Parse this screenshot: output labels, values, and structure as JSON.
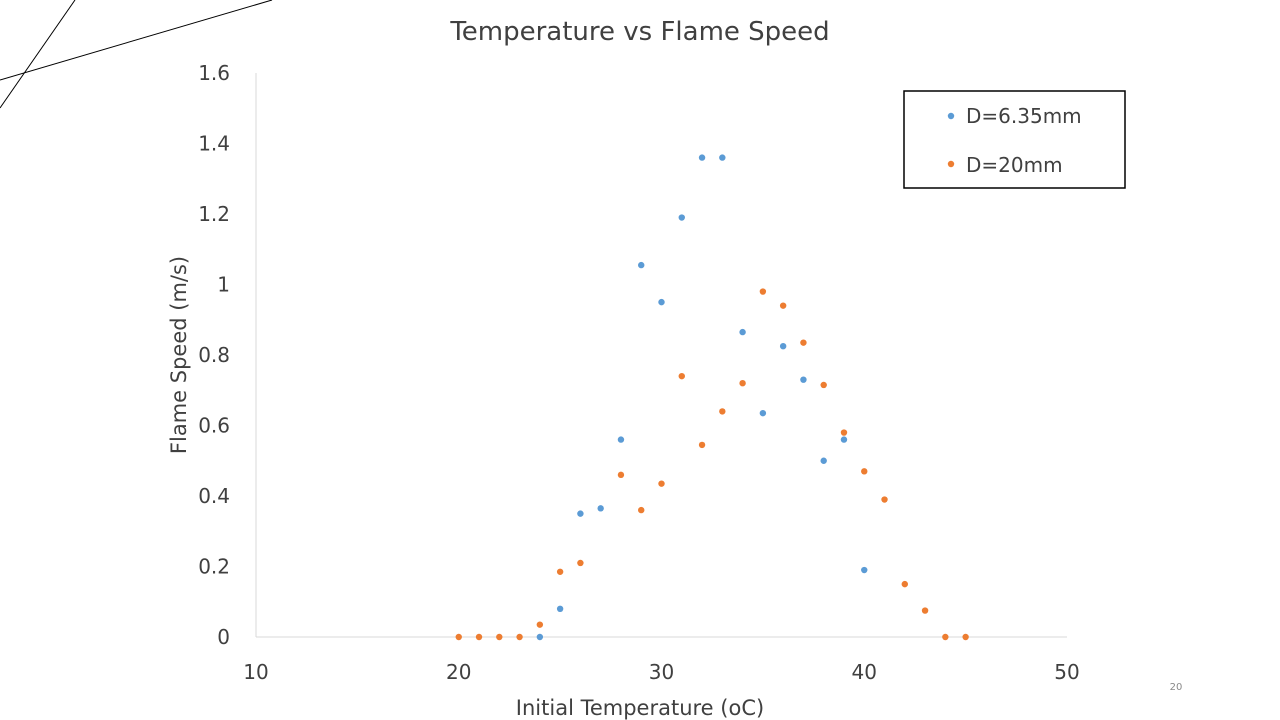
{
  "slide": {
    "page_number": "20"
  },
  "colors": {
    "series_a": "#5b9bd5",
    "series_b": "#ed7d31",
    "axis": "#d9d9d9",
    "text": "#404040"
  },
  "chart_data": {
    "type": "scatter",
    "title": "Temperature vs Flame Speed",
    "xlabel": "Initial Temperature (oC)",
    "ylabel": "Flame Speed (m/s)",
    "xlim": [
      10,
      50
    ],
    "ylim": [
      0,
      1.6
    ],
    "xticks": [
      "10",
      "20",
      "30",
      "40",
      "50"
    ],
    "yticks": [
      "0",
      "0.2",
      "0.4",
      "0.6",
      "0.8",
      "1",
      "1.2",
      "1.4",
      "1.6"
    ],
    "grid": false,
    "legend_position": "top-right",
    "series": [
      {
        "name": "D=6.35mm",
        "color": "#5b9bd5",
        "points": [
          [
            24,
            0
          ],
          [
            25,
            0.08
          ],
          [
            26,
            0.35
          ],
          [
            27,
            0.365
          ],
          [
            28,
            0.56
          ],
          [
            29,
            1.055
          ],
          [
            30,
            0.95
          ],
          [
            31,
            1.19
          ],
          [
            32,
            1.36
          ],
          [
            33,
            1.36
          ],
          [
            34,
            0.865
          ],
          [
            35,
            0.635
          ],
          [
            36,
            0.825
          ],
          [
            37,
            0.73
          ],
          [
            38,
            0.5
          ],
          [
            39,
            0.56
          ],
          [
            40,
            0.19
          ]
        ]
      },
      {
        "name": "D=20mm",
        "color": "#ed7d31",
        "points": [
          [
            20,
            0
          ],
          [
            21,
            0
          ],
          [
            22,
            0
          ],
          [
            23,
            0
          ],
          [
            24,
            0.035
          ],
          [
            25,
            0.185
          ],
          [
            26,
            0.21
          ],
          [
            28,
            0.46
          ],
          [
            29,
            0.36
          ],
          [
            30,
            0.435
          ],
          [
            31,
            0.74
          ],
          [
            32,
            0.545
          ],
          [
            33,
            0.64
          ],
          [
            34,
            0.72
          ],
          [
            35,
            0.98
          ],
          [
            36,
            0.94
          ],
          [
            37,
            0.835
          ],
          [
            38,
            0.715
          ],
          [
            39,
            0.58
          ],
          [
            40,
            0.47
          ],
          [
            41,
            0.39
          ],
          [
            42,
            0.15
          ],
          [
            43,
            0.075
          ],
          [
            44,
            0
          ],
          [
            45,
            0
          ]
        ]
      }
    ]
  }
}
